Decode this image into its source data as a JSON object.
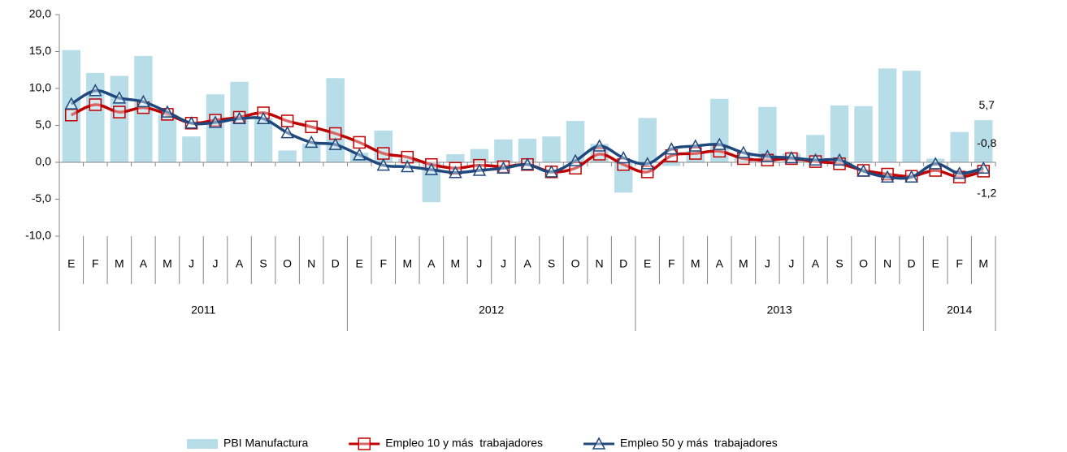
{
  "chart_data": {
    "type": "bar-line",
    "categories": [
      "E",
      "F",
      "M",
      "A",
      "M",
      "J",
      "J",
      "A",
      "S",
      "O",
      "N",
      "D",
      "E",
      "F",
      "M",
      "A",
      "M",
      "J",
      "J",
      "A",
      "S",
      "O",
      "N",
      "D",
      "E",
      "F",
      "M",
      "A",
      "M",
      "J",
      "J",
      "A",
      "S",
      "O",
      "N",
      "D",
      "E",
      "F",
      "M"
    ],
    "x_years": [
      "2011",
      "2011",
      "2011",
      "2011",
      "2011",
      "2011",
      "2011",
      "2011",
      "2011",
      "2011",
      "2011",
      "2011",
      "2012",
      "2012",
      "2012",
      "2012",
      "2012",
      "2012",
      "2012",
      "2012",
      "2012",
      "2012",
      "2012",
      "2012",
      "2013",
      "2013",
      "2013",
      "2013",
      "2013",
      "2013",
      "2013",
      "2013",
      "2013",
      "2013",
      "2013",
      "2013",
      "2014",
      "2014",
      "2014"
    ],
    "series": [
      {
        "name": "PBI Manufactura",
        "kind": "bar",
        "color": "#b7dde8",
        "values": [
          15.2,
          12.1,
          11.7,
          14.4,
          6.5,
          3.5,
          9.2,
          10.9,
          6.0,
          1.6,
          2.5,
          11.4,
          1.3,
          4.3,
          0.5,
          -5.4,
          1.1,
          1.8,
          3.1,
          3.2,
          3.5,
          5.6,
          2.5,
          -4.1,
          6.0,
          -0.5,
          1.5,
          8.6,
          1.0,
          7.5,
          1.2,
          3.7,
          7.7,
          7.6,
          12.7,
          12.4,
          0.5,
          4.1,
          5.7
        ],
        "value_labels": [
          null,
          null,
          null,
          null,
          null,
          null,
          null,
          null,
          null,
          null,
          null,
          null,
          null,
          null,
          null,
          null,
          null,
          null,
          null,
          null,
          null,
          null,
          null,
          null,
          null,
          null,
          null,
          null,
          null,
          null,
          null,
          null,
          null,
          null,
          null,
          null,
          null,
          null,
          "5,7"
        ]
      },
      {
        "name": "Empleo 10 y más  trabajadores",
        "kind": "line",
        "marker": "square",
        "color": "#c00000",
        "values": [
          6.4,
          7.8,
          6.8,
          7.4,
          6.5,
          5.3,
          5.7,
          6.1,
          6.7,
          5.6,
          4.8,
          3.9,
          2.7,
          1.2,
          0.7,
          -0.3,
          -0.8,
          -0.4,
          -0.6,
          -0.3,
          -1.3,
          -0.8,
          1.1,
          -0.3,
          -1.3,
          0.9,
          1.2,
          1.5,
          0.5,
          0.3,
          0.5,
          0.1,
          -0.2,
          -1.1,
          -1.6,
          -1.9,
          -1.1,
          -2.0,
          -1.2
        ],
        "value_labels": [
          null,
          null,
          null,
          null,
          null,
          null,
          null,
          null,
          null,
          null,
          null,
          null,
          null,
          null,
          null,
          null,
          null,
          null,
          null,
          null,
          null,
          null,
          null,
          null,
          null,
          null,
          null,
          null,
          null,
          null,
          null,
          null,
          null,
          null,
          null,
          null,
          null,
          null,
          "-1,2"
        ]
      },
      {
        "name": "Empleo 50 y más  trabajadores",
        "kind": "line",
        "marker": "triangle",
        "color": "#1f497d",
        "values": [
          7.9,
          9.7,
          8.7,
          8.2,
          6.8,
          5.3,
          5.4,
          5.9,
          5.9,
          4.0,
          2.7,
          2.4,
          1.0,
          -0.4,
          -0.6,
          -1.0,
          -1.4,
          -1.1,
          -0.8,
          -0.3,
          -1.3,
          0.2,
          2.2,
          0.6,
          -0.2,
          1.8,
          2.2,
          2.4,
          1.3,
          0.8,
          0.6,
          0.3,
          0.3,
          -1.2,
          -2.0,
          -2.0,
          -0.2,
          -1.5,
          -0.8
        ],
        "value_labels": [
          null,
          null,
          null,
          null,
          null,
          null,
          null,
          null,
          null,
          null,
          null,
          null,
          null,
          null,
          null,
          null,
          null,
          null,
          null,
          null,
          null,
          null,
          null,
          null,
          null,
          null,
          null,
          null,
          null,
          null,
          null,
          null,
          null,
          null,
          null,
          null,
          null,
          null,
          "-0,8"
        ]
      }
    ],
    "ylim": [
      -10,
      20
    ],
    "yticks": [
      {
        "value": -10,
        "label": "-10,0"
      },
      {
        "value": -5,
        "label": "-5,0"
      },
      {
        "value": 0,
        "label": "0,0"
      },
      {
        "value": 5,
        "label": "5,0"
      },
      {
        "value": 10,
        "label": "10,0"
      },
      {
        "value": 15,
        "label": "15,0"
      },
      {
        "value": 20,
        "label": "20,0"
      }
    ],
    "legend": "bottom"
  }
}
